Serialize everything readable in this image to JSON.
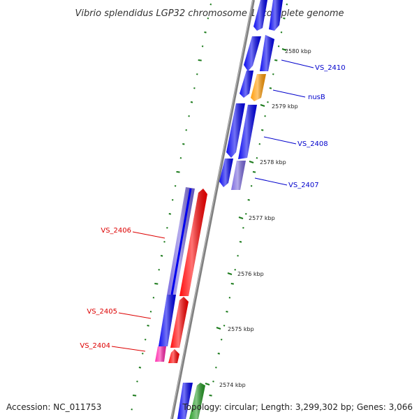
{
  "title": "Vibrio splendidus LGP32 chromosome 1, complete genome",
  "footer": {
    "accession": "Accession: NC_011753",
    "topology": "Topology: circular; Length: 3,299,302 bp; Genes: 3,066"
  },
  "colors": {
    "backbone": "#808080",
    "tick": "#1a7a1a",
    "forward_label": "#0000cc",
    "reverse_label": "#dd0000",
    "blue": "#0000ee",
    "light_blue": "#7766dd",
    "orange": "#ff9900",
    "red": "#ff0000",
    "magenta": "#ff22aa",
    "green": "#229922"
  },
  "chart_data": {
    "type": "linear-genome-map",
    "ticks": [
      {
        "kbp": 2580,
        "label": "2580 kbp"
      },
      {
        "kbp": 2579,
        "label": "2579 kbp"
      },
      {
        "kbp": 2578,
        "label": "2578 kbp"
      },
      {
        "kbp": 2577,
        "label": "2577 kbp"
      },
      {
        "kbp": 2576,
        "label": "2576 kbp"
      },
      {
        "kbp": 2575,
        "label": "2575 kbp"
      },
      {
        "kbp": 2574,
        "label": "2574 kbp"
      }
    ],
    "labeled_genes": [
      {
        "name": "VS_2410",
        "strand": "+",
        "color": "blue"
      },
      {
        "name": "nusB",
        "strand": "+",
        "color": "orange"
      },
      {
        "name": "VS_2408",
        "strand": "+",
        "color": "blue"
      },
      {
        "name": "VS_2407",
        "strand": "+",
        "color": "light_blue"
      },
      {
        "name": "VS_2406",
        "strand": "-",
        "color": "light_blue"
      },
      {
        "name": "VS_2405",
        "strand": "-",
        "color": "blue"
      },
      {
        "name": "VS_2404",
        "strand": "-",
        "color": "magenta"
      }
    ]
  }
}
